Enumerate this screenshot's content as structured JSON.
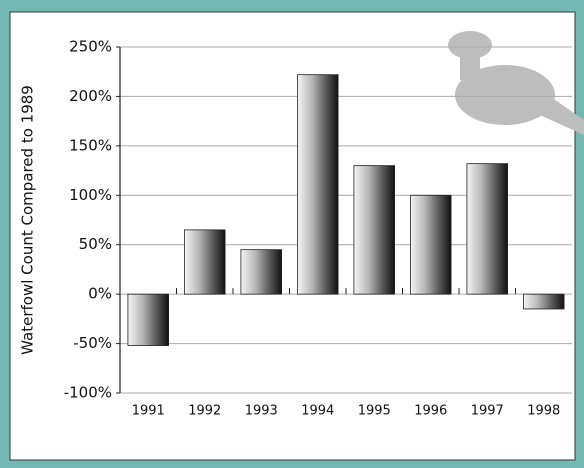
{
  "chart_data": {
    "type": "bar",
    "y_label": "Waterfowl Count Compared to 1989",
    "categories": [
      "1991",
      "1992",
      "1993",
      "1994",
      "1995",
      "1996",
      "1997",
      "1998"
    ],
    "values": [
      -52,
      65,
      45,
      222,
      130,
      100,
      132,
      -15
    ],
    "ylim": [
      -100,
      250
    ],
    "yticks": [
      {
        "value": -100,
        "label": "-100%"
      },
      {
        "value": -50,
        "label": "-50%"
      },
      {
        "value": 0,
        "label": "0%"
      },
      {
        "value": 50,
        "label": "50%"
      },
      {
        "value": 100,
        "label": "100%"
      },
      {
        "value": 150,
        "label": "150%"
      },
      {
        "value": 200,
        "label": "200%"
      },
      {
        "value": 250,
        "label": "250%"
      }
    ],
    "grid": true
  }
}
